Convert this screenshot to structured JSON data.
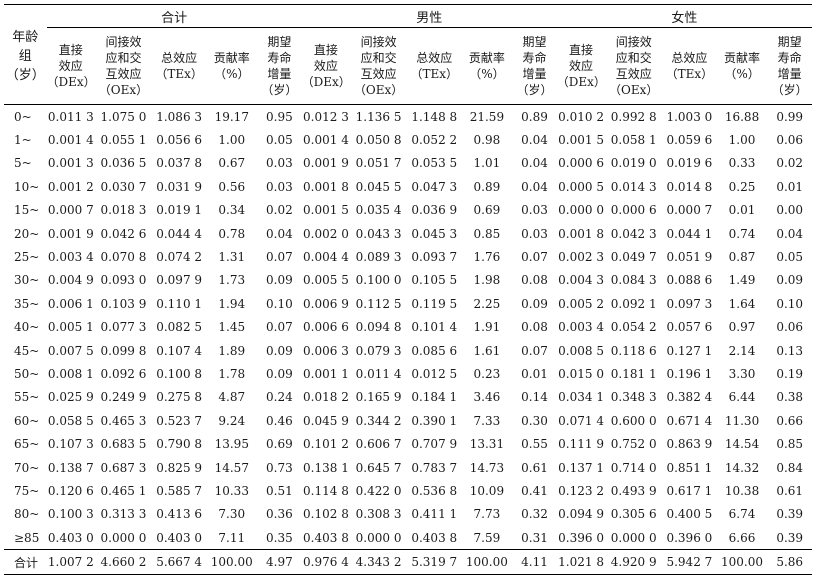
{
  "age_header": [
    "年龄",
    "组",
    "（岁）"
  ],
  "groups": [
    "合计",
    "男性",
    "女性"
  ],
  "sub_headers": [
    [
      "直接",
      "效应",
      "（DEx）"
    ],
    [
      "间接效",
      "应和交",
      "互效应",
      "（OEx）"
    ],
    [
      "总效应",
      "（TEx）"
    ],
    [
      "贡献率",
      "（%）"
    ],
    [
      "期望",
      "寿命",
      "增量",
      "（岁）"
    ]
  ],
  "rows": [
    {
      "age": "0~",
      "cells": [
        "0.011 3",
        "1.075 0",
        "1.086 3",
        "19.17",
        "0.95",
        "0.012 3",
        "1.136 5",
        "1.148 8",
        "21.59",
        "0.89",
        "0.010 2",
        "0.992 8",
        "1.003 0",
        "16.88",
        "0.99"
      ]
    },
    {
      "age": "1~",
      "cells": [
        "0.001 4",
        "0.055 1",
        "0.056 6",
        "1.00",
        "0.05",
        "0.001 4",
        "0.050 8",
        "0.052 2",
        "0.98",
        "0.04",
        "0.001 5",
        "0.058 1",
        "0.059 6",
        "1.00",
        "0.06"
      ]
    },
    {
      "age": "5~",
      "cells": [
        "0.001 3",
        "0.036 5",
        "0.037 8",
        "0.67",
        "0.03",
        "0.001 9",
        "0.051 7",
        "0.053 5",
        "1.01",
        "0.04",
        "0.000 6",
        "0.019 0",
        "0.019 6",
        "0.33",
        "0.02"
      ]
    },
    {
      "age": "10~",
      "cells": [
        "0.001 2",
        "0.030 7",
        "0.031 9",
        "0.56",
        "0.03",
        "0.001 8",
        "0.045 5",
        "0.047 3",
        "0.89",
        "0.04",
        "0.000 5",
        "0.014 3",
        "0.014 8",
        "0.25",
        "0.01"
      ]
    },
    {
      "age": "15~",
      "cells": [
        "0.000 7",
        "0.018 3",
        "0.019 1",
        "0.34",
        "0.02",
        "0.001 5",
        "0.035 4",
        "0.036 9",
        "0.69",
        "0.03",
        "0.000 0",
        "0.000 6",
        "0.000 7",
        "0.01",
        "0.00"
      ]
    },
    {
      "age": "20~",
      "cells": [
        "0.001 9",
        "0.042 6",
        "0.044 4",
        "0.78",
        "0.04",
        "0.002 0",
        "0.043 3",
        "0.045 3",
        "0.85",
        "0.03",
        "0.001 8",
        "0.042 3",
        "0.044 1",
        "0.74",
        "0.04"
      ]
    },
    {
      "age": "25~",
      "cells": [
        "0.003 4",
        "0.070 8",
        "0.074 2",
        "1.31",
        "0.07",
        "0.004 4",
        "0.089 3",
        "0.093 7",
        "1.76",
        "0.07",
        "0.002 3",
        "0.049 7",
        "0.051 9",
        "0.87",
        "0.05"
      ]
    },
    {
      "age": "30~",
      "cells": [
        "0.004 9",
        "0.093 0",
        "0.097 9",
        "1.73",
        "0.09",
        "0.005 5",
        "0.100 0",
        "0.105 5",
        "1.98",
        "0.08",
        "0.004 3",
        "0.084 3",
        "0.088 6",
        "1.49",
        "0.09"
      ]
    },
    {
      "age": "35~",
      "cells": [
        "0.006 1",
        "0.103 9",
        "0.110 1",
        "1.94",
        "0.10",
        "0.006 9",
        "0.112 5",
        "0.119 5",
        "2.25",
        "0.09",
        "0.005 2",
        "0.092 1",
        "0.097 3",
        "1.64",
        "0.10"
      ]
    },
    {
      "age": "40~",
      "cells": [
        "0.005 1",
        "0.077 3",
        "0.082 5",
        "1.45",
        "0.07",
        "0.006 6",
        "0.094 8",
        "0.101 4",
        "1.91",
        "0.08",
        "0.003 4",
        "0.054 2",
        "0.057 6",
        "0.97",
        "0.06"
      ]
    },
    {
      "age": "45~",
      "cells": [
        "0.007 5",
        "0.099 8",
        "0.107 4",
        "1.89",
        "0.09",
        "0.006 3",
        "0.079 3",
        "0.085 6",
        "1.61",
        "0.07",
        "0.008 5",
        "0.118 6",
        "0.127 1",
        "2.14",
        "0.13"
      ]
    },
    {
      "age": "50~",
      "cells": [
        "0.008 1",
        "0.092 6",
        "0.100 8",
        "1.78",
        "0.09",
        "0.001 1",
        "0.011 4",
        "0.012 5",
        "0.23",
        "0.01",
        "0.015 0",
        "0.181 1",
        "0.196 1",
        "3.30",
        "0.19"
      ]
    },
    {
      "age": "55~",
      "cells": [
        "0.025 9",
        "0.249 9",
        "0.275 8",
        "4.87",
        "0.24",
        "0.018 2",
        "0.165 9",
        "0.184 1",
        "3.46",
        "0.14",
        "0.034 1",
        "0.348 3",
        "0.382 4",
        "6.44",
        "0.38"
      ]
    },
    {
      "age": "60~",
      "cells": [
        "0.058 5",
        "0.465 3",
        "0.523 7",
        "9.24",
        "0.46",
        "0.045 9",
        "0.344 2",
        "0.390 1",
        "7.33",
        "0.30",
        "0.071 4",
        "0.600 0",
        "0.671 4",
        "11.30",
        "0.66"
      ]
    },
    {
      "age": "65~",
      "cells": [
        "0.107 3",
        "0.683 5",
        "0.790 8",
        "13.95",
        "0.69",
        "0.101 2",
        "0.606 7",
        "0.707 9",
        "13.31",
        "0.55",
        "0.111 9",
        "0.752 0",
        "0.863 9",
        "14.54",
        "0.85"
      ]
    },
    {
      "age": "70~",
      "cells": [
        "0.138 7",
        "0.687 3",
        "0.825 9",
        "14.57",
        "0.73",
        "0.138 1",
        "0.645 7",
        "0.783 7",
        "14.73",
        "0.61",
        "0.137 1",
        "0.714 0",
        "0.851 1",
        "14.32",
        "0.84"
      ]
    },
    {
      "age": "75~",
      "cells": [
        "0.120 6",
        "0.465 1",
        "0.585 7",
        "10.33",
        "0.51",
        "0.114 8",
        "0.422 0",
        "0.536 8",
        "10.09",
        "0.41",
        "0.123 2",
        "0.493 9",
        "0.617 1",
        "10.38",
        "0.61"
      ]
    },
    {
      "age": "80~",
      "cells": [
        "0.100 3",
        "0.313 3",
        "0.413 6",
        "7.30",
        "0.36",
        "0.102 8",
        "0.308 3",
        "0.411 1",
        "7.73",
        "0.32",
        "0.094 9",
        "0.305 6",
        "0.400 5",
        "6.74",
        "0.39"
      ]
    },
    {
      "age": "≥85",
      "cells": [
        "0.403 0",
        "0.000 0",
        "0.403 0",
        "7.11",
        "0.35",
        "0.403 8",
        "0.000 0",
        "0.403 8",
        "7.59",
        "0.31",
        "0.396 0",
        "0.000 0",
        "0.396 0",
        "6.66",
        "0.39"
      ]
    }
  ],
  "total": {
    "age": "合计",
    "cells": [
      "1.007 2",
      "4.660 2",
      "5.667 4",
      "100.00",
      "4.97",
      "0.976 4",
      "4.343 2",
      "5.319 7",
      "100.00",
      "4.11",
      "1.021 8",
      "4.920 9",
      "5.942 7",
      "100.00",
      "5.86"
    ]
  }
}
